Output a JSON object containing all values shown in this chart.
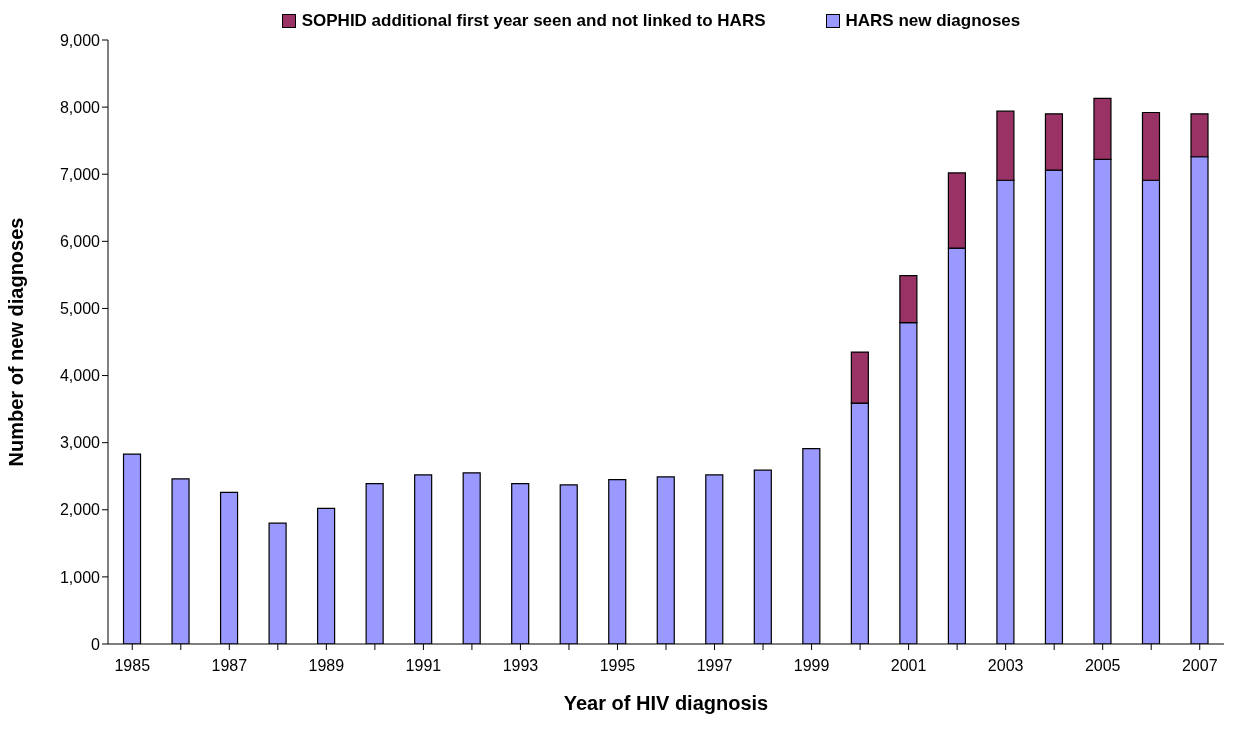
{
  "chart_data": {
    "type": "bar",
    "stacked": true,
    "xlabel": "Year of HIV diagnosis",
    "ylabel": "Number of new diagnoses",
    "categories": [
      "1985",
      null,
      "1987",
      null,
      "1989",
      null,
      "1991",
      null,
      "1993",
      null,
      "1995",
      null,
      "1997",
      null,
      "1999",
      null,
      "2001",
      null,
      "2003",
      null,
      "2005",
      null,
      "2007"
    ],
    "series": [
      {
        "name": "HARS new diagnoses",
        "color": "#9999ff",
        "values": [
          2830,
          2460,
          2260,
          1800,
          2020,
          2390,
          2520,
          2550,
          2390,
          2370,
          2450,
          2490,
          2520,
          2590,
          2910,
          3590,
          4790,
          5900,
          6910,
          7060,
          7220,
          6910,
          7260
        ]
      },
      {
        "name": "SOPHID additional first year seen and not linked to HARS",
        "color": "#993366",
        "values": [
          0,
          0,
          0,
          0,
          0,
          0,
          0,
          0,
          0,
          0,
          0,
          0,
          0,
          0,
          0,
          760,
          700,
          1120,
          1030,
          840,
          910,
          1010,
          640
        ]
      }
    ],
    "ylim": [
      0,
      9000
    ],
    "yticks": [
      {
        "value": 0,
        "label": "0"
      },
      {
        "value": 1000,
        "label": "1,000"
      },
      {
        "value": 2000,
        "label": "2,000"
      },
      {
        "value": 3000,
        "label": "3,000"
      },
      {
        "value": 4000,
        "label": "4,000"
      },
      {
        "value": 5000,
        "label": "5,000"
      },
      {
        "value": 6000,
        "label": "6,000"
      },
      {
        "value": 7000,
        "label": "7,000"
      },
      {
        "value": 8000,
        "label": "8,000"
      },
      {
        "value": 9000,
        "label": "9,000"
      }
    ],
    "grid": false,
    "legend": "top"
  }
}
